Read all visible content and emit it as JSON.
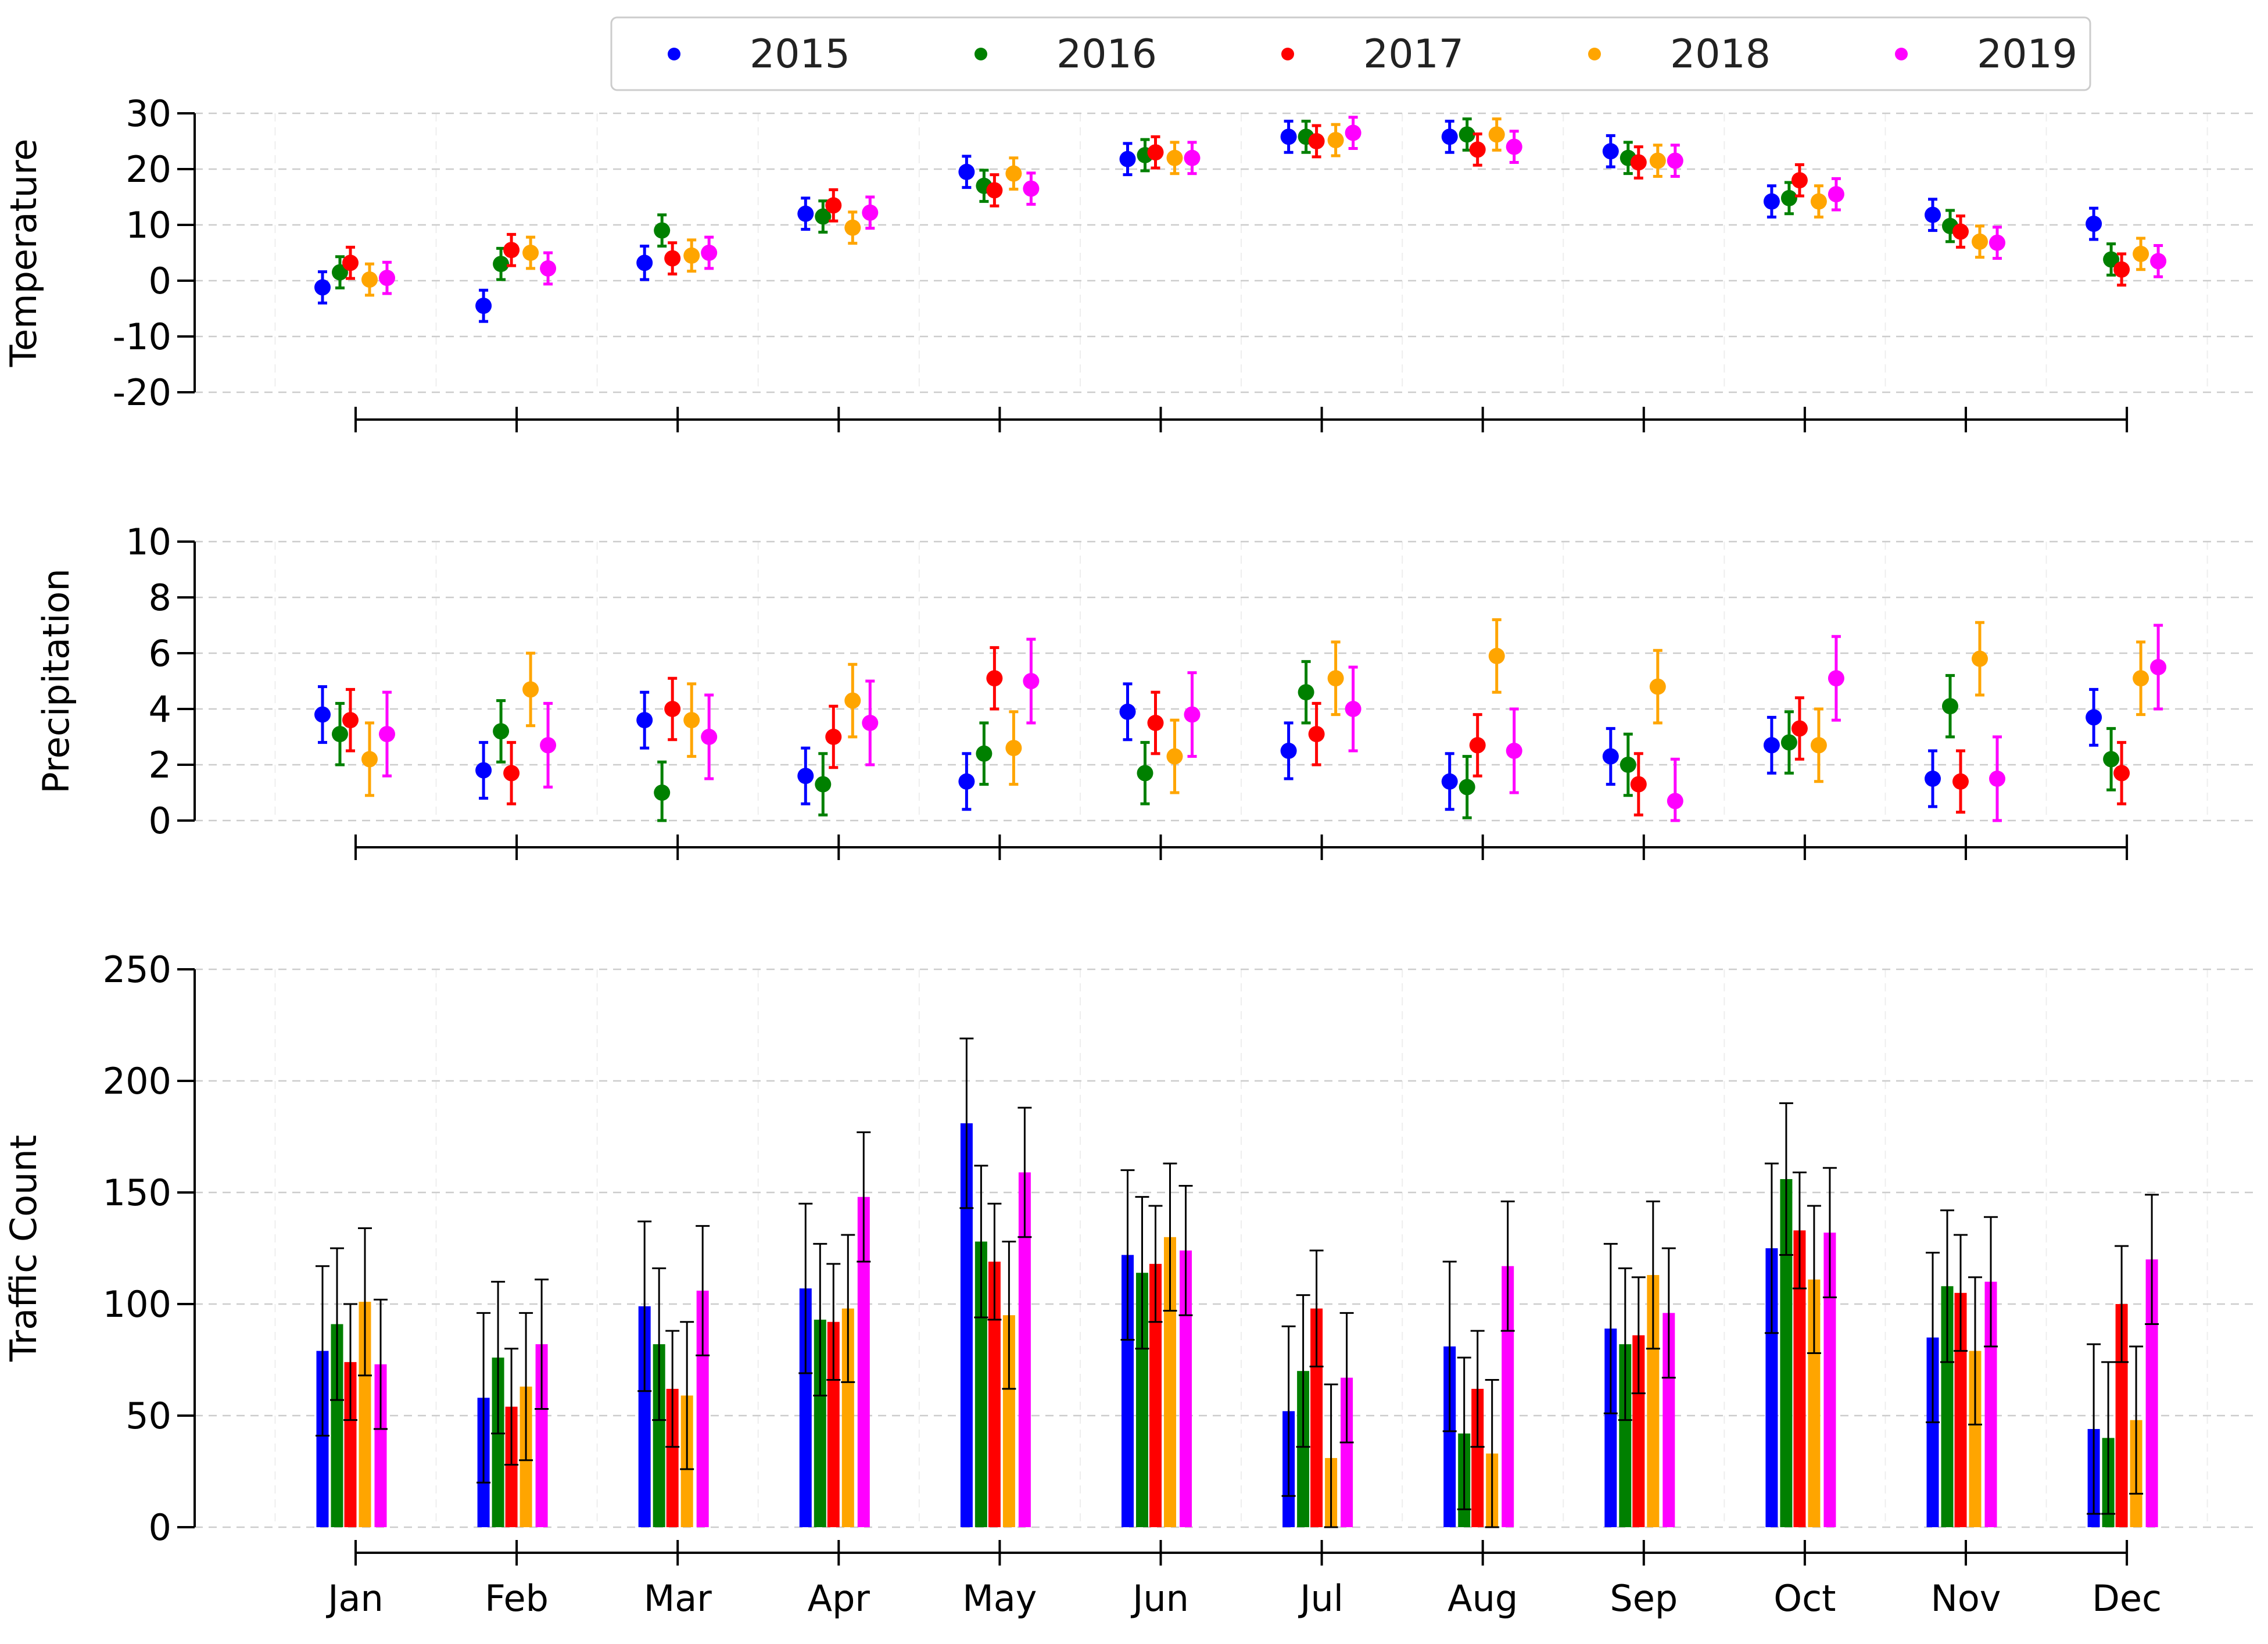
{
  "chart_data": [
    {
      "type": "scatter",
      "panel": "temperature",
      "ylabel": "Temperature",
      "ylim": [
        -20,
        30
      ],
      "yticks": [
        -20,
        -10,
        0,
        10,
        20,
        30
      ],
      "grid": true,
      "categories": [
        "Jan",
        "Feb",
        "Mar",
        "Apr",
        "May",
        "Jun",
        "Jul",
        "Aug",
        "Sep",
        "Oct",
        "Nov",
        "Dec"
      ],
      "series": [
        {
          "name": "2015",
          "color": "#0000ff",
          "values": [
            -1.2,
            -4.5,
            3.2,
            12.0,
            19.5,
            21.8,
            25.8,
            25.8,
            23.2,
            14.2,
            11.8,
            10.2
          ],
          "err": [
            2.8,
            2.8,
            3.0,
            2.8,
            2.8,
            2.8,
            2.8,
            2.8,
            2.8,
            2.8,
            2.8,
            2.8
          ]
        },
        {
          "name": "2016",
          "color": "#008000",
          "values": [
            1.5,
            3.0,
            9.0,
            11.5,
            17.0,
            22.5,
            25.8,
            26.2,
            22.0,
            14.8,
            9.8,
            3.8
          ],
          "err": [
            2.8,
            2.8,
            2.8,
            2.8,
            2.8,
            2.8,
            2.8,
            2.8,
            2.8,
            2.8,
            2.8,
            2.8
          ]
        },
        {
          "name": "2017",
          "color": "#ff0000",
          "values": [
            3.2,
            5.5,
            4.0,
            13.5,
            16.2,
            23.0,
            25.0,
            23.5,
            21.2,
            18.0,
            8.8,
            2.0
          ],
          "err": [
            2.8,
            2.8,
            2.8,
            2.8,
            2.8,
            2.8,
            2.8,
            2.8,
            2.8,
            2.8,
            2.8,
            2.8
          ]
        },
        {
          "name": "2018",
          "color": "#ffa500",
          "values": [
            0.2,
            5.0,
            4.5,
            9.5,
            19.2,
            22.0,
            25.2,
            26.2,
            21.5,
            14.2,
            7.0,
            4.8
          ],
          "err": [
            2.8,
            2.8,
            2.8,
            2.8,
            2.8,
            2.8,
            2.8,
            2.8,
            2.8,
            2.8,
            2.8,
            2.8
          ]
        },
        {
          "name": "2019",
          "color": "#ff00ff",
          "values": [
            0.5,
            2.2,
            5.0,
            12.2,
            16.5,
            22.0,
            26.5,
            24.0,
            21.5,
            15.5,
            6.8,
            3.5
          ],
          "err": [
            2.8,
            2.8,
            2.8,
            2.8,
            2.8,
            2.8,
            2.8,
            2.8,
            2.8,
            2.8,
            2.8,
            2.8
          ]
        }
      ]
    },
    {
      "type": "scatter",
      "panel": "precipitation",
      "ylabel": "Precipitation",
      "ylim": [
        0,
        10
      ],
      "yticks": [
        0,
        2,
        4,
        6,
        8,
        10
      ],
      "grid": true,
      "categories": [
        "Jan",
        "Feb",
        "Mar",
        "Apr",
        "May",
        "Jun",
        "Jul",
        "Aug",
        "Sep",
        "Oct",
        "Nov",
        "Dec"
      ],
      "series": [
        {
          "name": "2015",
          "color": "#0000ff",
          "values": [
            3.8,
            1.8,
            3.6,
            1.6,
            1.4,
            3.9,
            2.5,
            1.4,
            2.3,
            2.7,
            1.5,
            3.7
          ],
          "err": [
            1.0,
            1.0,
            1.0,
            1.0,
            1.0,
            1.0,
            1.0,
            1.0,
            1.0,
            1.0,
            1.0,
            1.0
          ]
        },
        {
          "name": "2016",
          "color": "#008000",
          "values": [
            3.1,
            3.2,
            1.0,
            1.3,
            2.4,
            1.7,
            4.6,
            1.2,
            2.0,
            2.8,
            4.1,
            2.2
          ],
          "err": [
            1.1,
            1.1,
            1.1,
            1.1,
            1.1,
            1.1,
            1.1,
            1.1,
            1.1,
            1.1,
            1.1,
            1.1
          ]
        },
        {
          "name": "2017",
          "color": "#ff0000",
          "values": [
            3.6,
            1.7,
            4.0,
            3.0,
            5.1,
            3.5,
            3.1,
            2.7,
            1.3,
            3.3,
            1.4,
            1.7
          ],
          "err": [
            1.1,
            1.1,
            1.1,
            1.1,
            1.1,
            1.1,
            1.1,
            1.1,
            1.1,
            1.1,
            1.1,
            1.1
          ]
        },
        {
          "name": "2018",
          "color": "#ffa500",
          "values": [
            2.2,
            4.7,
            3.6,
            4.3,
            2.6,
            2.3,
            5.1,
            5.9,
            4.8,
            2.7,
            5.8,
            5.1
          ],
          "err": [
            1.3,
            1.3,
            1.3,
            1.3,
            1.3,
            1.3,
            1.3,
            1.3,
            1.3,
            1.3,
            1.3,
            1.3
          ]
        },
        {
          "name": "2019",
          "color": "#ff00ff",
          "values": [
            3.1,
            2.7,
            3.0,
            3.5,
            5.0,
            3.8,
            4.0,
            2.5,
            0.7,
            5.1,
            1.5,
            5.5
          ],
          "err": [
            1.5,
            1.5,
            1.5,
            1.5,
            1.5,
            1.5,
            1.5,
            1.5,
            1.5,
            1.5,
            1.5,
            1.5
          ]
        }
      ]
    },
    {
      "type": "bar",
      "panel": "traffic",
      "ylabel": "Traffic Count",
      "ylim": [
        0,
        250
      ],
      "yticks": [
        0,
        50,
        100,
        150,
        200,
        250
      ],
      "grid": true,
      "categories": [
        "Jan",
        "Feb",
        "Mar",
        "Apr",
        "May",
        "Jun",
        "Jul",
        "Aug",
        "Sep",
        "Oct",
        "Nov",
        "Dec"
      ],
      "series": [
        {
          "name": "2015",
          "color": "#0000ff",
          "values": [
            79,
            58,
            99,
            107,
            181,
            122,
            52,
            81,
            89,
            125,
            85,
            44
          ],
          "err": [
            38,
            38,
            38,
            38,
            38,
            38,
            38,
            38,
            38,
            38,
            38,
            38
          ]
        },
        {
          "name": "2016",
          "color": "#008000",
          "values": [
            91,
            76,
            82,
            93,
            128,
            114,
            70,
            42,
            82,
            156,
            108,
            40
          ],
          "err": [
            34,
            34,
            34,
            34,
            34,
            34,
            34,
            34,
            34,
            34,
            34,
            34
          ]
        },
        {
          "name": "2017",
          "color": "#ff0000",
          "values": [
            74,
            54,
            62,
            92,
            119,
            118,
            98,
            62,
            86,
            133,
            105,
            100
          ],
          "err": [
            26,
            26,
            26,
            26,
            26,
            26,
            26,
            26,
            26,
            26,
            26,
            26
          ]
        },
        {
          "name": "2018",
          "color": "#ffa500",
          "values": [
            101,
            63,
            59,
            98,
            95,
            130,
            31,
            33,
            113,
            111,
            79,
            48
          ],
          "err": [
            33,
            33,
            33,
            33,
            33,
            33,
            33,
            33,
            33,
            33,
            33,
            33
          ]
        },
        {
          "name": "2019",
          "color": "#ff00ff",
          "values": [
            73,
            82,
            106,
            148,
            159,
            124,
            67,
            117,
            96,
            132,
            110,
            120
          ],
          "err": [
            29,
            29,
            29,
            29,
            29,
            29,
            29,
            29,
            29,
            29,
            29,
            29
          ]
        }
      ]
    }
  ],
  "legend": {
    "placement": "top",
    "entries": [
      {
        "label": "2015",
        "color": "#0000ff"
      },
      {
        "label": "2016",
        "color": "#008000"
      },
      {
        "label": "2017",
        "color": "#ff0000"
      },
      {
        "label": "2018",
        "color": "#ffa500"
      },
      {
        "label": "2019",
        "color": "#ff00ff"
      }
    ]
  }
}
